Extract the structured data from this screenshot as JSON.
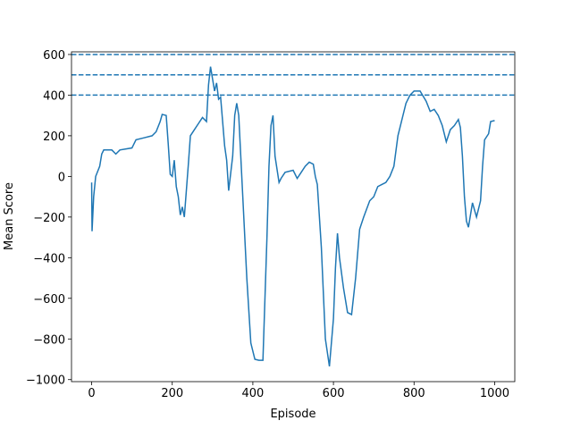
{
  "chart_data": {
    "type": "line",
    "xlabel": "Episode",
    "ylabel": "Mean Score",
    "x": [
      0,
      1,
      5,
      10,
      20,
      25,
      30,
      50,
      60,
      70,
      100,
      110,
      130,
      150,
      160,
      170,
      175,
      185,
      190,
      195,
      200,
      205,
      210,
      215,
      220,
      225,
      230,
      240,
      245,
      255,
      265,
      275,
      285,
      290,
      295,
      300,
      305,
      310,
      315,
      320,
      330,
      335,
      340,
      350,
      355,
      360,
      365,
      370,
      375,
      385,
      395,
      405,
      415,
      425,
      435,
      440,
      445,
      450,
      455,
      465,
      470,
      480,
      500,
      510,
      520,
      530,
      540,
      550,
      555,
      560,
      570,
      580,
      590,
      600,
      605,
      610,
      615,
      625,
      635,
      645,
      655,
      665,
      675,
      690,
      700,
      710,
      720,
      730,
      740,
      750,
      760,
      770,
      780,
      790,
      800,
      815,
      830,
      840,
      850,
      860,
      870,
      880,
      890,
      900,
      910,
      915,
      920,
      925,
      930,
      935,
      945,
      955,
      965,
      970,
      975,
      985,
      990,
      1000
    ],
    "series": [
      {
        "name": "Mean Score",
        "color": "#1f77b4",
        "values": [
          -30,
          -270,
          -100,
          0,
          50,
          110,
          130,
          130,
          110,
          130,
          140,
          180,
          190,
          200,
          220,
          270,
          305,
          300,
          160,
          10,
          0,
          80,
          -50,
          -100,
          -190,
          -150,
          -200,
          60,
          200,
          230,
          260,
          290,
          270,
          450,
          540,
          480,
          420,
          460,
          380,
          390,
          150,
          80,
          -70,
          100,
          300,
          360,
          300,
          100,
          -100,
          -500,
          -820,
          -900,
          -905,
          -905,
          -300,
          50,
          250,
          300,
          100,
          -30,
          -10,
          20,
          30,
          -10,
          20,
          50,
          70,
          60,
          0,
          -40,
          -350,
          -800,
          -935,
          -700,
          -450,
          -280,
          -400,
          -550,
          -670,
          -680,
          -500,
          -260,
          -200,
          -120,
          -100,
          -50,
          -40,
          -30,
          0,
          50,
          200,
          280,
          360,
          400,
          420,
          420,
          370,
          320,
          330,
          300,
          250,
          170,
          230,
          250,
          280,
          240,
          100,
          -100,
          -220,
          -250,
          -130,
          -200,
          -120,
          50,
          180,
          210,
          270,
          275
        ]
      }
    ],
    "hlines": [
      400,
      500,
      600
    ],
    "xlim": [
      -50,
      1050
    ],
    "ylim": [
      -1010,
      613
    ],
    "xticks": [
      0,
      200,
      400,
      600,
      800,
      1000
    ],
    "yticks": [
      {
        "value": -1000,
        "label": "−1000"
      },
      {
        "value": -800,
        "label": "−800"
      },
      {
        "value": -600,
        "label": "−600"
      },
      {
        "value": -400,
        "label": "−400"
      },
      {
        "value": -200,
        "label": "−200"
      },
      0,
      200,
      400,
      600
    ]
  }
}
